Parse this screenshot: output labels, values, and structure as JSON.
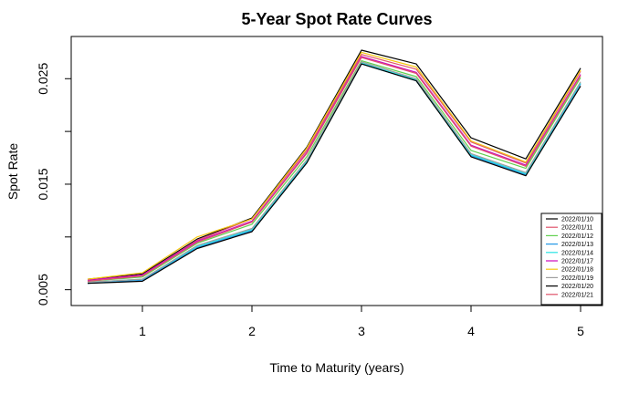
{
  "chart_data": {
    "type": "line",
    "title": "5-Year Spot Rate Curves",
    "xlabel": "Time to Maturity (years)",
    "ylabel": "Spot Rate",
    "x": [
      0.5,
      1,
      1.5,
      2,
      2.5,
      3,
      3.5,
      4,
      4.5,
      5
    ],
    "xlim": [
      0.35,
      5.2
    ],
    "ylim": [
      0.0035,
      0.029
    ],
    "x_ticks": [
      "1",
      "2",
      "3",
      "4",
      "5"
    ],
    "y_ticks": [
      "0.005",
      "0.015",
      "0.025"
    ],
    "legend_position": "bottom-right",
    "grid": false,
    "series": [
      {
        "name": "2022/01/10",
        "color": "#000000",
        "values": [
          0.006,
          0.0065,
          0.0098,
          0.0118,
          0.0185,
          0.0277,
          0.0264,
          0.0194,
          0.0174,
          0.026
        ]
      },
      {
        "name": "2022/01/11",
        "color": "#DF536B",
        "values": [
          0.0059,
          0.0064,
          0.0097,
          0.0117,
          0.0182,
          0.0273,
          0.0259,
          0.019,
          0.017,
          0.0257
        ]
      },
      {
        "name": "2022/01/12",
        "color": "#61D04F",
        "values": [
          0.0058,
          0.0062,
          0.0094,
          0.0112,
          0.0176,
          0.0267,
          0.0252,
          0.0182,
          0.0165,
          0.0251
        ]
      },
      {
        "name": "2022/01/13",
        "color": "#2297E6",
        "values": [
          0.0056,
          0.0059,
          0.009,
          0.0106,
          0.0171,
          0.0264,
          0.0248,
          0.0177,
          0.0159,
          0.0245
        ]
      },
      {
        "name": "2022/01/14",
        "color": "#28E2E5",
        "values": [
          0.0057,
          0.006,
          0.0091,
          0.0107,
          0.0172,
          0.0265,
          0.0249,
          0.0178,
          0.016,
          0.0246
        ]
      },
      {
        "name": "2022/01/17",
        "color": "#CD0BBC",
        "values": [
          0.0059,
          0.0064,
          0.0096,
          0.0115,
          0.018,
          0.0271,
          0.0256,
          0.0187,
          0.0168,
          0.0254
        ]
      },
      {
        "name": "2022/01/18",
        "color": "#F5C710",
        "values": [
          0.006,
          0.0066,
          0.01,
          0.0117,
          0.0184,
          0.0275,
          0.0261,
          0.0191,
          0.0171,
          0.0258
        ]
      },
      {
        "name": "2022/01/19",
        "color": "#9E9E9E",
        "values": [
          0.0057,
          0.006,
          0.0092,
          0.0108,
          0.0173,
          0.0266,
          0.025,
          0.0179,
          0.0161,
          0.0247
        ]
      },
      {
        "name": "2022/01/20",
        "color": "#000000",
        "values": [
          0.0056,
          0.0058,
          0.0089,
          0.0105,
          0.017,
          0.0264,
          0.0248,
          0.0176,
          0.0158,
          0.0243
        ]
      },
      {
        "name": "2022/01/21",
        "color": "#DF536B",
        "values": [
          0.0058,
          0.0063,
          0.0095,
          0.0114,
          0.0179,
          0.027,
          0.0255,
          0.0186,
          0.0167,
          0.0253
        ]
      }
    ]
  }
}
